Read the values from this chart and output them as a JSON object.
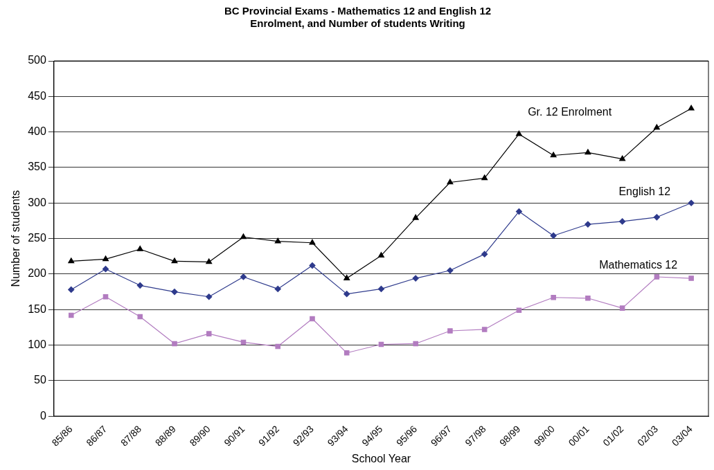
{
  "chart_data": {
    "type": "line",
    "title": "BC Provincial Exams - Mathematics 12 and English 12\nEnrolment, and Number of students Writing",
    "xlabel": "School Year",
    "ylabel": "Number of students",
    "categories": [
      "85/86",
      "86/87",
      "87/88",
      "88/89",
      "89/90",
      "90/91",
      "91/92",
      "92/93",
      "93/94",
      "94/95",
      "95/96",
      "96/97",
      "97/98",
      "98/99",
      "99/00",
      "00/01",
      "01/02",
      "02/03",
      "03/04"
    ],
    "series": [
      {
        "name": "Gr. 12 Enrolment",
        "color": "#000000",
        "marker": "triangle",
        "values": [
          218,
          221,
          235,
          218,
          217,
          252,
          246,
          244,
          194,
          226,
          279,
          329,
          335,
          397,
          367,
          371,
          362,
          406,
          433
        ]
      },
      {
        "name": "English 12",
        "color": "#2e3a8c",
        "marker": "diamond",
        "values": [
          178,
          207,
          184,
          175,
          168,
          196,
          179,
          212,
          172,
          179,
          194,
          205,
          228,
          288,
          254,
          270,
          274,
          280,
          300
        ]
      },
      {
        "name": "Mathematics 12",
        "color": "#b27cc0",
        "marker": "square",
        "values": [
          142,
          168,
          140,
          102,
          116,
          104,
          98,
          137,
          89,
          101,
          102,
          120,
          122,
          149,
          167,
          166,
          152,
          196,
          194
        ]
      }
    ],
    "ylim": [
      0,
      500
    ],
    "yticks": [
      0,
      50,
      100,
      150,
      200,
      250,
      300,
      350,
      400,
      450,
      500
    ],
    "grid": "y",
    "legend": false,
    "line_style": "solid"
  }
}
